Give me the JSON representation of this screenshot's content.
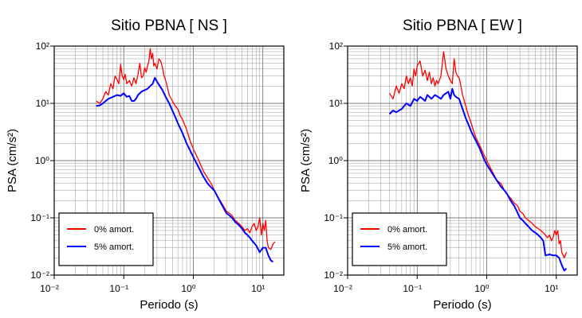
{
  "chart_data": [
    {
      "type": "line",
      "title": "Sitio PBNA [ NS ]",
      "xlabel": "Periodo (s)",
      "ylabel": "PSA (cm/s²)",
      "xscale": "log",
      "yscale": "log",
      "xlim": [
        0.01,
        20
      ],
      "ylim": [
        0.01,
        100
      ],
      "grid": true,
      "legend_position": "bottom-left",
      "x_ticks": [
        "10⁻²",
        "10⁻¹",
        "10⁰",
        "10¹"
      ],
      "y_ticks": [
        "10⁻²",
        "10⁻¹",
        "10⁰",
        "10¹",
        "10²"
      ],
      "series": [
        {
          "name": "0% amort.",
          "color": "#ff0000",
          "x": [
            0.04,
            0.045,
            0.05,
            0.055,
            0.06,
            0.065,
            0.07,
            0.075,
            0.08,
            0.085,
            0.09,
            0.095,
            0.1,
            0.105,
            0.11,
            0.12,
            0.13,
            0.14,
            0.15,
            0.16,
            0.17,
            0.18,
            0.19,
            0.2,
            0.21,
            0.22,
            0.23,
            0.24,
            0.25,
            0.26,
            0.27,
            0.28,
            0.3,
            0.32,
            0.34,
            0.36,
            0.38,
            0.4,
            0.42,
            0.45,
            0.5,
            0.55,
            0.6,
            0.65,
            0.7,
            0.8,
            0.9,
            1.0,
            1.2,
            1.4,
            1.6,
            1.8,
            2.0,
            2.2,
            2.5,
            2.8,
            3.0,
            3.3,
            3.6,
            4.0,
            4.5,
            5.0,
            5.5,
            6.0,
            6.5,
            7.0,
            7.5,
            8.0,
            8.5,
            9.0,
            9.5,
            10.0,
            10.5,
            11.0,
            11.5,
            12.0,
            13.0,
            14.0,
            15.0
          ],
          "y": [
            11,
            10,
            12,
            16,
            14,
            22,
            18,
            30,
            26,
            22,
            48,
            30,
            26,
            32,
            22,
            25,
            20,
            28,
            22,
            32,
            50,
            28,
            30,
            42,
            35,
            45,
            55,
            90,
            60,
            75,
            45,
            50,
            40,
            60,
            55,
            42,
            30,
            25,
            20,
            14,
            11,
            9,
            8,
            6,
            5.2,
            3.5,
            2.2,
            1.6,
            1.0,
            0.65,
            0.5,
            0.4,
            0.3,
            0.24,
            0.19,
            0.15,
            0.13,
            0.12,
            0.11,
            0.09,
            0.08,
            0.07,
            0.06,
            0.065,
            0.055,
            0.07,
            0.08,
            0.06,
            0.07,
            0.1,
            0.05,
            0.08,
            0.06,
            0.09,
            0.04,
            0.03,
            0.028,
            0.035,
            0.038
          ]
        },
        {
          "name": "5% amort.",
          "color": "#0000ff",
          "x": [
            0.04,
            0.045,
            0.05,
            0.06,
            0.07,
            0.08,
            0.09,
            0.1,
            0.11,
            0.12,
            0.13,
            0.14,
            0.15,
            0.16,
            0.18,
            0.2,
            0.22,
            0.24,
            0.26,
            0.28,
            0.3,
            0.33,
            0.36,
            0.4,
            0.45,
            0.5,
            0.55,
            0.6,
            0.7,
            0.8,
            0.9,
            1.0,
            1.2,
            1.4,
            1.6,
            1.8,
            2.0,
            2.2,
            2.5,
            2.8,
            3.0,
            3.3,
            3.6,
            4.0,
            4.5,
            5.0,
            5.5,
            6.0,
            6.5,
            7.0,
            8.0,
            9.0,
            10.0,
            11.0,
            12.0,
            13.0,
            14.0
          ],
          "y": [
            9,
            9.2,
            10,
            12,
            13,
            14,
            13.5,
            15,
            13,
            13.5,
            11,
            11,
            12,
            14,
            16,
            17,
            18,
            20,
            22,
            28,
            24,
            20,
            17,
            13,
            10,
            7.5,
            5.8,
            4.5,
            3.0,
            2.0,
            1.5,
            1.15,
            0.75,
            0.52,
            0.4,
            0.34,
            0.3,
            0.24,
            0.18,
            0.14,
            0.12,
            0.11,
            0.1,
            0.085,
            0.075,
            0.065,
            0.055,
            0.05,
            0.045,
            0.04,
            0.033,
            0.025,
            0.03,
            0.03,
            0.022,
            0.018,
            0.017
          ]
        }
      ]
    },
    {
      "type": "line",
      "title": "Sitio PBNA [ EW ]",
      "xlabel": "Periodo (s)",
      "ylabel": "PSA (cm/s²)",
      "xscale": "log",
      "yscale": "log",
      "xlim": [
        0.01,
        20
      ],
      "ylim": [
        0.01,
        100
      ],
      "grid": true,
      "legend_position": "bottom-left",
      "x_ticks": [
        "10⁻²",
        "10⁻¹",
        "10⁰",
        "10¹"
      ],
      "y_ticks": [
        "10⁻²",
        "10⁻¹",
        "10⁰",
        "10¹",
        "10²"
      ],
      "series": [
        {
          "name": "0% amort.",
          "color": "#ff0000",
          "x": [
            0.04,
            0.045,
            0.05,
            0.055,
            0.06,
            0.065,
            0.07,
            0.075,
            0.08,
            0.085,
            0.09,
            0.095,
            0.1,
            0.11,
            0.12,
            0.13,
            0.14,
            0.15,
            0.16,
            0.17,
            0.18,
            0.19,
            0.2,
            0.22,
            0.24,
            0.26,
            0.28,
            0.3,
            0.32,
            0.34,
            0.36,
            0.38,
            0.4,
            0.42,
            0.45,
            0.5,
            0.55,
            0.6,
            0.65,
            0.7,
            0.8,
            0.9,
            1.0,
            1.2,
            1.4,
            1.6,
            1.8,
            2.0,
            2.2,
            2.5,
            2.8,
            3.0,
            3.3,
            3.6,
            4.0,
            4.5,
            5.0,
            5.5,
            6.0,
            6.5,
            7.0,
            7.5,
            8.0,
            8.5,
            9.0,
            9.5,
            10.0,
            10.5,
            11.0,
            11.5,
            12.0,
            13.0,
            14.0
          ],
          "y": [
            15,
            12,
            20,
            15,
            22,
            18,
            30,
            22,
            28,
            20,
            40,
            30,
            45,
            55,
            30,
            38,
            25,
            35,
            22,
            28,
            20,
            25,
            22,
            30,
            80,
            40,
            30,
            25,
            22,
            60,
            35,
            30,
            28,
            22,
            14,
            9,
            6,
            4.5,
            3.2,
            2.5,
            1.8,
            1.3,
            1.0,
            0.65,
            0.45,
            0.4,
            0.3,
            0.25,
            0.22,
            0.18,
            0.16,
            0.13,
            0.12,
            0.1,
            0.09,
            0.08,
            0.07,
            0.065,
            0.06,
            0.055,
            0.05,
            0.045,
            0.05,
            0.04,
            0.045,
            0.06,
            0.05,
            0.06,
            0.035,
            0.04,
            0.025,
            0.02,
            0.025
          ]
        },
        {
          "name": "5% amort.",
          "color": "#0000ff",
          "x": [
            0.04,
            0.045,
            0.05,
            0.06,
            0.07,
            0.08,
            0.09,
            0.1,
            0.11,
            0.12,
            0.13,
            0.14,
            0.15,
            0.16,
            0.18,
            0.2,
            0.22,
            0.24,
            0.26,
            0.28,
            0.3,
            0.32,
            0.34,
            0.36,
            0.4,
            0.45,
            0.5,
            0.55,
            0.6,
            0.7,
            0.8,
            0.9,
            1.0,
            1.2,
            1.4,
            1.6,
            1.8,
            2.0,
            2.2,
            2.5,
            2.8,
            3.0,
            3.3,
            3.6,
            4.0,
            4.5,
            5.0,
            5.5,
            6.0,
            6.5,
            7.0,
            8.0,
            9.0,
            10.0,
            11.0,
            12.0,
            13.0,
            14.0
          ],
          "y": [
            6.5,
            7.5,
            7,
            8,
            10,
            9,
            12,
            11,
            13,
            12,
            11,
            14,
            13,
            12,
            14,
            13,
            12,
            14,
            15,
            16,
            12,
            18,
            14,
            13,
            12,
            8,
            5.5,
            4.2,
            3.2,
            2.2,
            1.6,
            1.1,
            0.85,
            0.6,
            0.45,
            0.35,
            0.3,
            0.25,
            0.2,
            0.16,
            0.12,
            0.1,
            0.09,
            0.08,
            0.07,
            0.06,
            0.055,
            0.05,
            0.045,
            0.04,
            0.022,
            0.023,
            0.022,
            0.022,
            0.02,
            0.015,
            0.012,
            0.013
          ]
        }
      ]
    }
  ]
}
